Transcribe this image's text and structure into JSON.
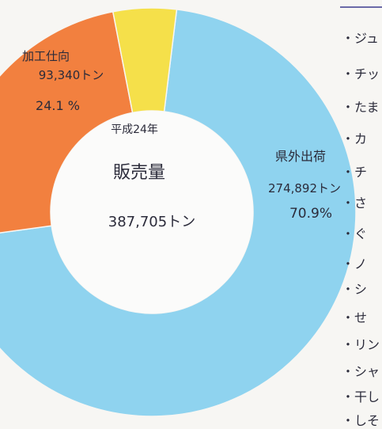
{
  "chart_data": {
    "type": "pie",
    "style": "donut",
    "center": {
      "year": "平成24年",
      "label": "販売量",
      "value": "387,705トン"
    },
    "slices": [
      {
        "label": "県外出荷",
        "amount": "274,892トン",
        "percent_label": "70.9%",
        "value": 70.9,
        "color": "#8fd3ef"
      },
      {
        "label": "加工仕向",
        "amount": "93,340トン",
        "percent_label": "24.1 %",
        "value": 24.1,
        "color": "#f2803f"
      },
      {
        "label": "",
        "amount": "",
        "percent_label": "",
        "value": 5.0,
        "color": "#f5e04a"
      }
    ]
  },
  "side_list": {
    "items": [
      "・ジュ",
      "・チッ",
      "・たま",
      "・カ",
      "・チ",
      "・さ",
      "・ぐ",
      "・ノ",
      "・シ",
      "・せ",
      "・リン",
      "・シャ",
      "・干し",
      "・しそ"
    ]
  }
}
